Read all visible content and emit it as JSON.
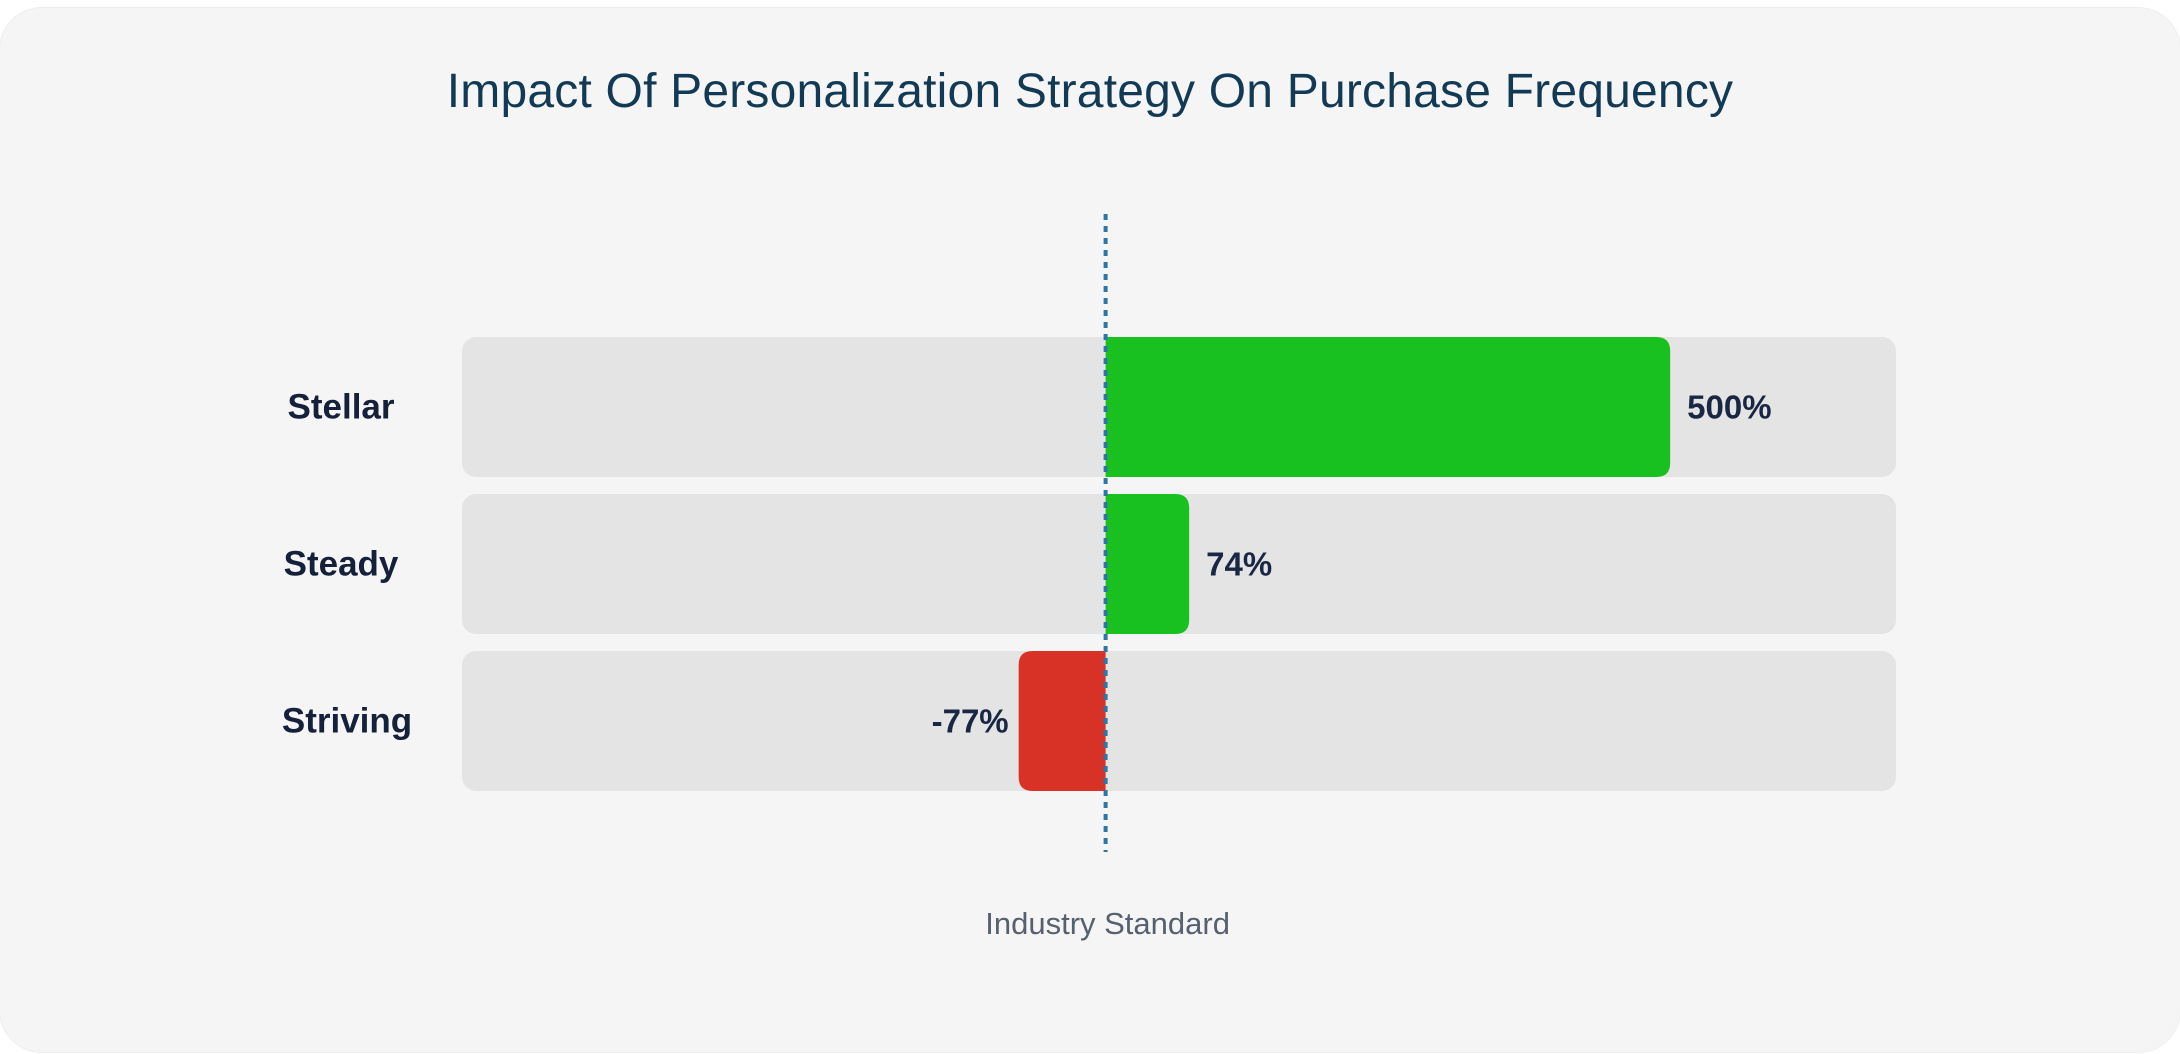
{
  "chart_data": {
    "type": "bar",
    "orientation": "horizontal",
    "title": "Impact Of Personalization Strategy On Purchase Frequency",
    "categories": [
      "Stellar",
      "Steady",
      "Striving"
    ],
    "values": [
      500,
      74,
      -77
    ],
    "value_labels": [
      "500%",
      "74%",
      "-77%"
    ],
    "xlim": [
      -570,
      700
    ],
    "reference_line": {
      "value": 0,
      "label": "Industry Standard",
      "style": "dotted"
    },
    "grid": false,
    "legend": "none",
    "colors": {
      "positive": "#18c11f",
      "negative": "#d83125",
      "track": "#e4e4e4",
      "reference_line": "#2c77a9",
      "title": "#123a55"
    }
  }
}
